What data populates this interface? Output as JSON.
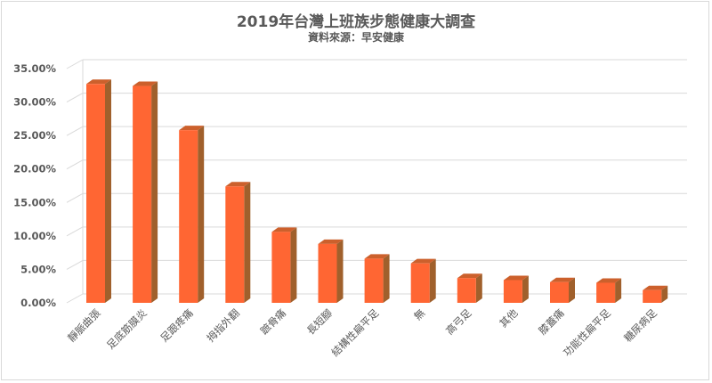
{
  "chart_data": {
    "type": "bar",
    "style": "3d-column",
    "title": "2019年台灣上班族步態健康大調查",
    "subtitle": "資料來源：早安健康",
    "xlabel": "",
    "ylabel": "",
    "ylim": [
      0,
      0.35
    ],
    "yticks": [
      "0.00%",
      "5.00%",
      "10.00%",
      "15.00%",
      "20.00%",
      "25.00%",
      "30.00%",
      "35.00%"
    ],
    "grid": true,
    "legend": null,
    "categories": [
      "靜脈曲張",
      "足底筋膜炎",
      "足跟疼痛",
      "拇指外翻",
      "蹠骨痛",
      "長短腳",
      "結構性扁平足",
      "無",
      "高弓足",
      "其他",
      "膝蓋痛",
      "功能性扁平足",
      "糖尿病足"
    ],
    "values": [
      0.327,
      0.324,
      0.258,
      0.174,
      0.106,
      0.088,
      0.066,
      0.059,
      0.037,
      0.034,
      0.031,
      0.03,
      0.019
    ],
    "colors": {
      "front": "#FF6633",
      "top": "#CC602C",
      "side": "#A0602C",
      "grid": "#D9D9D9",
      "text": "#595959"
    }
  }
}
